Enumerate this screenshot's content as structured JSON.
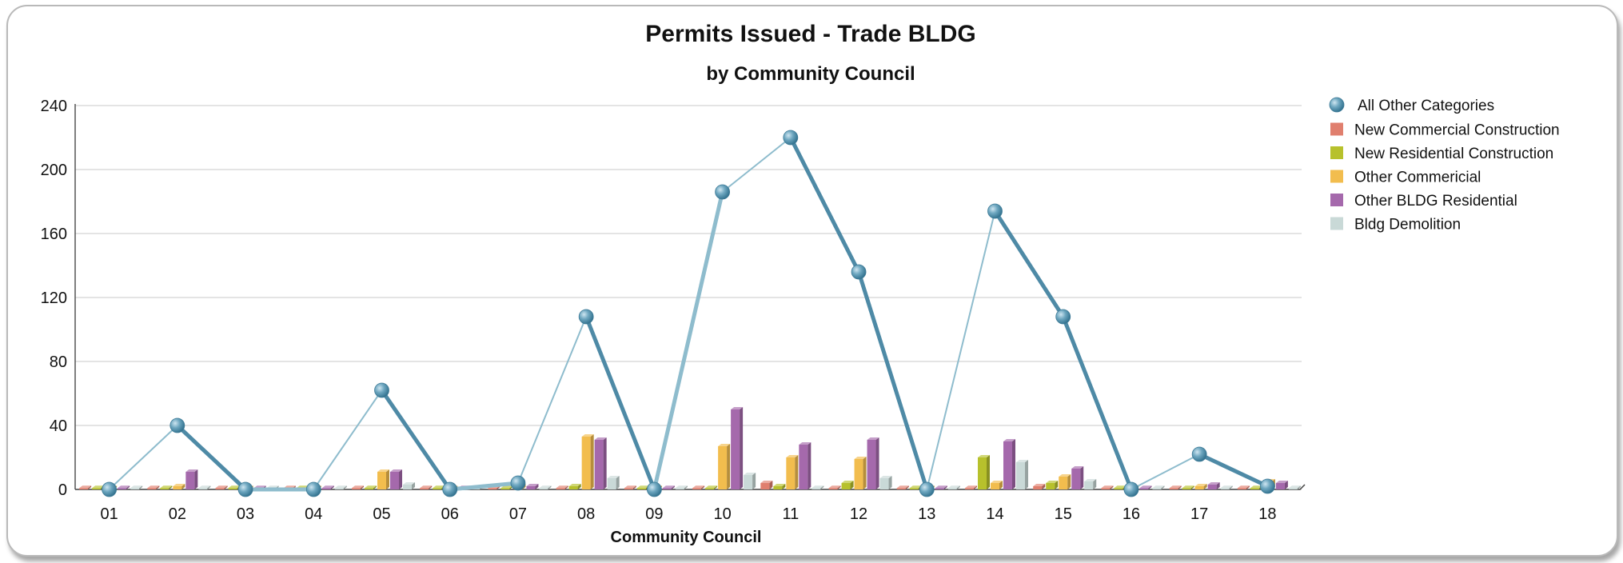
{
  "chart_data": {
    "type": "bar",
    "title": "Permits Issued -  Trade BLDG",
    "subtitle": "by Community Council",
    "xlabel": "Community Council",
    "ylabel": "",
    "ylim": [
      0,
      240
    ],
    "yticks": [
      0,
      40,
      80,
      120,
      160,
      200,
      240
    ],
    "grid": true,
    "legend_position": "right",
    "categories": [
      "01",
      "02",
      "03",
      "04",
      "05",
      "06",
      "07",
      "08",
      "09",
      "10",
      "11",
      "12",
      "13",
      "14",
      "15",
      "16",
      "17",
      "18"
    ],
    "line_series": {
      "name": "All Other Categories",
      "color": "#5f9ab4",
      "values": [
        0,
        40,
        0,
        0,
        62,
        0,
        4,
        108,
        0,
        186,
        220,
        136,
        0,
        174,
        108,
        0,
        22,
        2
      ]
    },
    "series": [
      {
        "name": "New Commercial Construction",
        "color": "#e07f6e",
        "values": [
          0,
          0,
          0,
          0,
          0,
          0,
          0,
          0,
          0,
          0,
          4,
          0,
          0,
          0,
          2,
          0,
          0,
          0
        ]
      },
      {
        "name": "New Residential Construction",
        "color": "#b7c12c",
        "values": [
          0,
          0,
          0,
          0,
          0,
          0,
          0,
          2,
          0,
          0,
          2,
          4,
          0,
          20,
          4,
          0,
          0,
          0
        ]
      },
      {
        "name": "Other Commericial",
        "color": "#f2bd4e",
        "values": [
          0,
          2,
          0,
          0,
          11,
          0,
          2,
          33,
          0,
          27,
          20,
          19,
          0,
          4,
          8,
          0,
          2,
          5
        ]
      },
      {
        "name": "Other BLDG Residential",
        "color": "#a569ac",
        "values": [
          0,
          11,
          0,
          0,
          11,
          0,
          2,
          31,
          0,
          50,
          28,
          31,
          0,
          30,
          13,
          0,
          3,
          4
        ]
      },
      {
        "name": "Bldg Demolition",
        "color": "#c9d9d7",
        "values": [
          0,
          0,
          0,
          0,
          3,
          0,
          0,
          7,
          0,
          9,
          0,
          7,
          0,
          17,
          5,
          0,
          0,
          0
        ]
      }
    ]
  }
}
